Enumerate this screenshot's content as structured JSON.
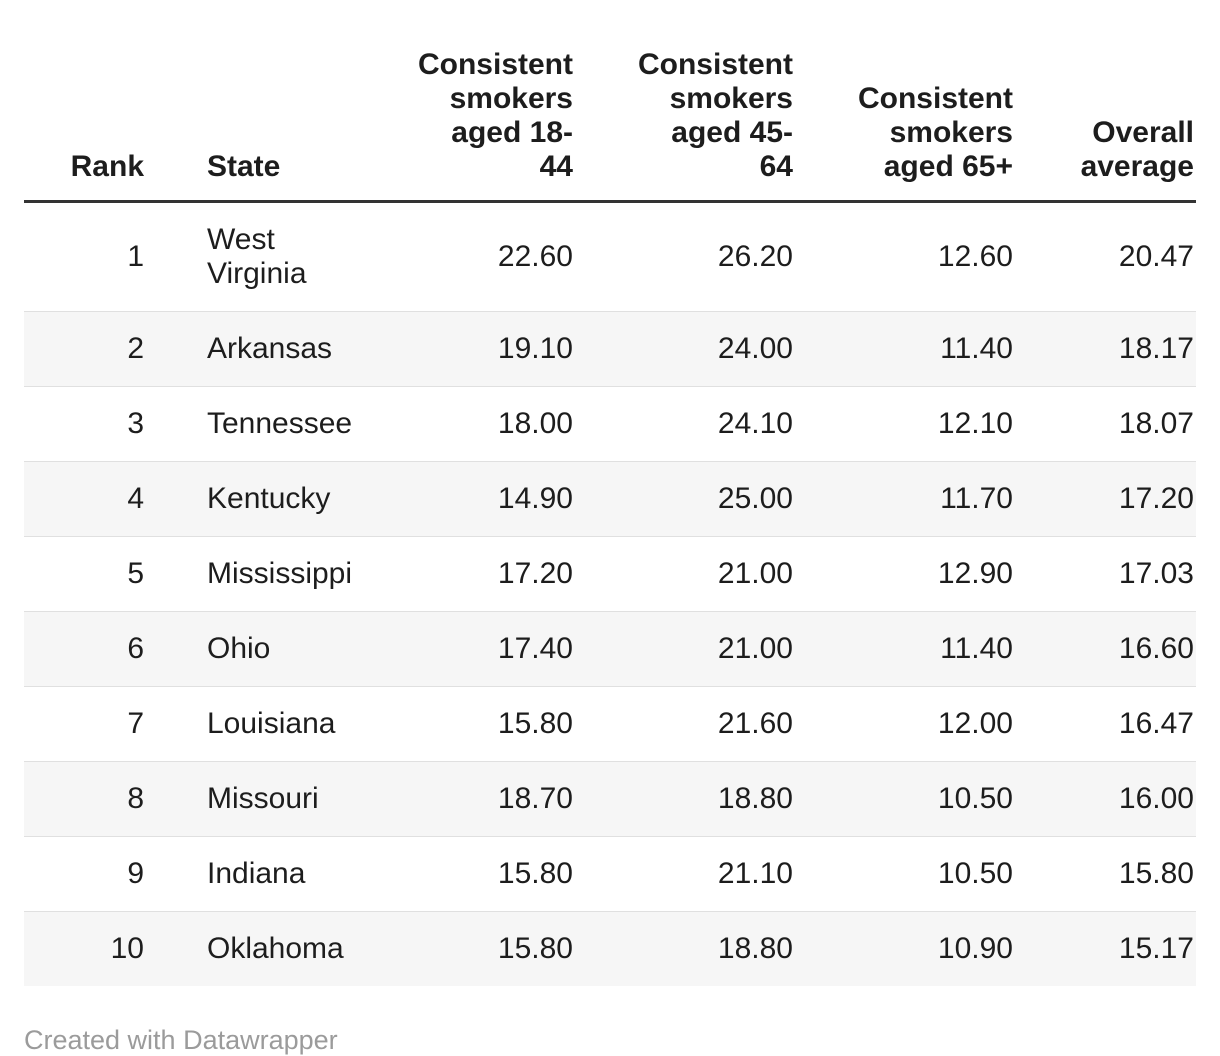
{
  "table": {
    "columns": [
      {
        "id": "rank",
        "label": "Rank"
      },
      {
        "id": "state",
        "label": "State"
      },
      {
        "id": "smokers_18_44",
        "label": "Consistent\nsmokers\naged 18-\n44"
      },
      {
        "id": "smokers_45_64",
        "label": "Consistent\nsmokers\naged 45-\n64"
      },
      {
        "id": "smokers_65",
        "label": "Consistent\nsmokers\naged 65+"
      },
      {
        "id": "overall",
        "label": "Overall\naverage"
      }
    ],
    "rows": [
      {
        "rank": "1",
        "state": "West\nVirginia",
        "smokers_18_44": "22.60",
        "smokers_45_64": "26.20",
        "smokers_65": "12.60",
        "overall": "20.47"
      },
      {
        "rank": "2",
        "state": "Arkansas",
        "smokers_18_44": "19.10",
        "smokers_45_64": "24.00",
        "smokers_65": "11.40",
        "overall": "18.17"
      },
      {
        "rank": "3",
        "state": "Tennessee",
        "smokers_18_44": "18.00",
        "smokers_45_64": "24.10",
        "smokers_65": "12.10",
        "overall": "18.07"
      },
      {
        "rank": "4",
        "state": "Kentucky",
        "smokers_18_44": "14.90",
        "smokers_45_64": "25.00",
        "smokers_65": "11.70",
        "overall": "17.20"
      },
      {
        "rank": "5",
        "state": "Mississippi",
        "smokers_18_44": "17.20",
        "smokers_45_64": "21.00",
        "smokers_65": "12.90",
        "overall": "17.03"
      },
      {
        "rank": "6",
        "state": "Ohio",
        "smokers_18_44": "17.40",
        "smokers_45_64": "21.00",
        "smokers_65": "11.40",
        "overall": "16.60"
      },
      {
        "rank": "7",
        "state": "Louisiana",
        "smokers_18_44": "15.80",
        "smokers_45_64": "21.60",
        "smokers_65": "12.00",
        "overall": "16.47"
      },
      {
        "rank": "8",
        "state": "Missouri",
        "smokers_18_44": "18.70",
        "smokers_45_64": "18.80",
        "smokers_65": "10.50",
        "overall": "16.00"
      },
      {
        "rank": "9",
        "state": "Indiana",
        "smokers_18_44": "15.80",
        "smokers_45_64": "21.10",
        "smokers_65": "10.50",
        "overall": "15.80"
      },
      {
        "rank": "10",
        "state": "Oklahoma",
        "smokers_18_44": "15.80",
        "smokers_45_64": "18.80",
        "smokers_65": "10.90",
        "overall": "15.17"
      }
    ]
  },
  "footer": {
    "credit": "Created with Datawrapper"
  },
  "colors": {
    "text": "#1d1d1d",
    "header_rule": "#333333",
    "row_separator": "#e0e0e0",
    "zebra_row": "#f6f6f6",
    "credit_text": "#9b9b9b"
  },
  "chart_data": {
    "type": "table",
    "columns": [
      "Rank",
      "State",
      "Consistent smokers aged 18-44",
      "Consistent smokers aged 45-64",
      "Consistent smokers aged 65+",
      "Overall average"
    ],
    "rows": [
      [
        1,
        "West Virginia",
        22.6,
        26.2,
        12.6,
        20.47
      ],
      [
        2,
        "Arkansas",
        19.1,
        24.0,
        11.4,
        18.17
      ],
      [
        3,
        "Tennessee",
        18.0,
        24.1,
        12.1,
        18.07
      ],
      [
        4,
        "Kentucky",
        14.9,
        25.0,
        11.7,
        17.2
      ],
      [
        5,
        "Mississippi",
        17.2,
        21.0,
        12.9,
        17.03
      ],
      [
        6,
        "Ohio",
        17.4,
        21.0,
        11.4,
        16.6
      ],
      [
        7,
        "Louisiana",
        15.8,
        21.6,
        12.0,
        16.47
      ],
      [
        8,
        "Missouri",
        18.7,
        18.8,
        10.5,
        16.0
      ],
      [
        9,
        "Indiana",
        15.8,
        21.1,
        10.5,
        15.8
      ],
      [
        10,
        "Oklahoma",
        15.8,
        18.8,
        10.9,
        15.17
      ]
    ],
    "layout_hints": {
      "zebra_striping": true,
      "numeric_columns_right_aligned": true,
      "attribution": "Created with Datawrapper"
    }
  }
}
